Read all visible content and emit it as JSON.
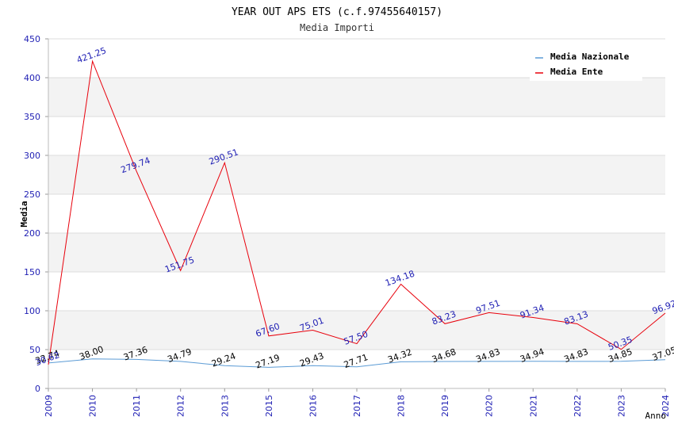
{
  "chart_data": {
    "type": "line",
    "title": "YEAR OUT APS ETS (c.f.97455640157)",
    "subtitle": "Media Importi",
    "xlabel": "Anno",
    "ylabel": "Media",
    "ylim": [
      0,
      450
    ],
    "yticks": [
      0,
      50,
      100,
      150,
      200,
      250,
      300,
      350,
      400,
      450
    ],
    "categories": [
      "2009",
      "2010",
      "2011",
      "2012",
      "2013",
      "2015",
      "2016",
      "2017",
      "2018",
      "2019",
      "2020",
      "2021",
      "2022",
      "2023",
      "2024"
    ],
    "series": [
      {
        "name": "Media Nazionale",
        "color": "#5b9bd5",
        "values": [
          32.74,
          38.0,
          37.36,
          34.79,
          29.24,
          27.19,
          29.43,
          27.71,
          34.32,
          34.68,
          34.83,
          34.94,
          34.83,
          34.85,
          37.05
        ],
        "labels": [
          "32.74",
          "38.00",
          "37.36",
          "34.79",
          "29.24",
          "27.19",
          "29.43",
          "27.71",
          "34.32",
          "34.68",
          "34.83",
          "34.94",
          "34.83",
          "34.85",
          "37.05"
        ]
      },
      {
        "name": "Media Ente",
        "color": "#e8000b",
        "values": [
          30.62,
          421.25,
          279.74,
          151.75,
          290.51,
          67.6,
          75.01,
          57.5,
          134.18,
          83.23,
          97.51,
          91.34,
          83.13,
          50.35,
          96.92
        ],
        "labels": [
          "30.62",
          "421.25",
          "279.74",
          "151.75",
          "290.51",
          "67.60",
          "75.01",
          "57.50",
          "134.18",
          "83.23",
          "97.51",
          "91.34",
          "83.13",
          "50.35",
          "96.92"
        ]
      }
    ],
    "grid": true,
    "legend": "top-right"
  }
}
